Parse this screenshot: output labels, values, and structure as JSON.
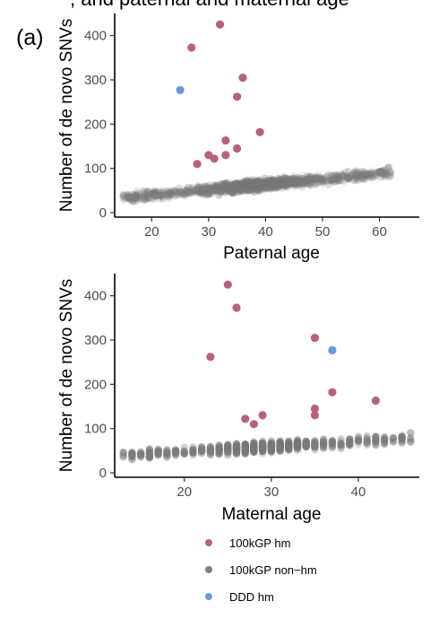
{
  "header": {
    "caption_fragment": ", and paternal and maternal age"
  },
  "colors": {
    "hm": "#b8607d",
    "nonhm": "#7f7f7f",
    "ddd": "#6a97dc",
    "axis": "#000000"
  },
  "legend": {
    "position": "bottom",
    "entries": [
      {
        "label": "100kGP hm",
        "color": "#b8607d"
      },
      {
        "label": "100kGP non−hm",
        "color": "#7f7f7f"
      },
      {
        "label": "DDD hm",
        "color": "#6a97dc"
      }
    ]
  },
  "chart_data": [
    {
      "type": "scatter",
      "panel_label": "(a)",
      "xlabel": "Paternal age",
      "ylabel": "Number of de novo SNVs",
      "xlim": [
        13.5,
        67
      ],
      "ylim": [
        -10,
        450
      ],
      "xticks": [
        20,
        30,
        40,
        50,
        60
      ],
      "yticks": [
        0,
        100,
        200,
        300,
        400
      ],
      "grid": false,
      "background_cloud": {
        "series": "100kGP non−hm",
        "x_range": [
          15,
          62
        ],
        "trend_intercept": 16,
        "trend_slope": 1.2
      },
      "series": [
        {
          "name": "100kGP hm",
          "points": [
            [
              32,
              425
            ],
            [
              27,
              373
            ],
            [
              36,
              305
            ],
            [
              35,
              262
            ],
            [
              39,
              182
            ],
            [
              33,
              163
            ],
            [
              35,
              145
            ],
            [
              30,
              130
            ],
            [
              31,
              122
            ],
            [
              33,
              130
            ],
            [
              28,
              110
            ]
          ]
        },
        {
          "name": "DDD hm",
          "points": [
            [
              25,
              277
            ]
          ]
        }
      ]
    },
    {
      "type": "scatter",
      "xlabel": "Maternal age",
      "ylabel": "Number of de novo SNVs",
      "xlim": [
        12,
        47
      ],
      "ylim": [
        -10,
        450
      ],
      "xticks": [
        20,
        30,
        40
      ],
      "yticks": [
        0,
        100,
        200,
        300,
        400
      ],
      "grid": false,
      "background_cloud": {
        "series": "100kGP non−hm",
        "x_range": [
          13,
          46
        ],
        "trend_intercept": 25,
        "trend_slope": 1.15
      },
      "series": [
        {
          "name": "100kGP hm",
          "points": [
            [
              25,
              425
            ],
            [
              26,
              373
            ],
            [
              23,
              262
            ],
            [
              35,
              305
            ],
            [
              37,
              182
            ],
            [
              42,
              163
            ],
            [
              35,
              145
            ],
            [
              35,
              130
            ],
            [
              27,
              122
            ],
            [
              29,
              130
            ],
            [
              28,
              110
            ]
          ]
        },
        {
          "name": "DDD hm",
          "points": [
            [
              37,
              277
            ]
          ]
        }
      ]
    }
  ]
}
